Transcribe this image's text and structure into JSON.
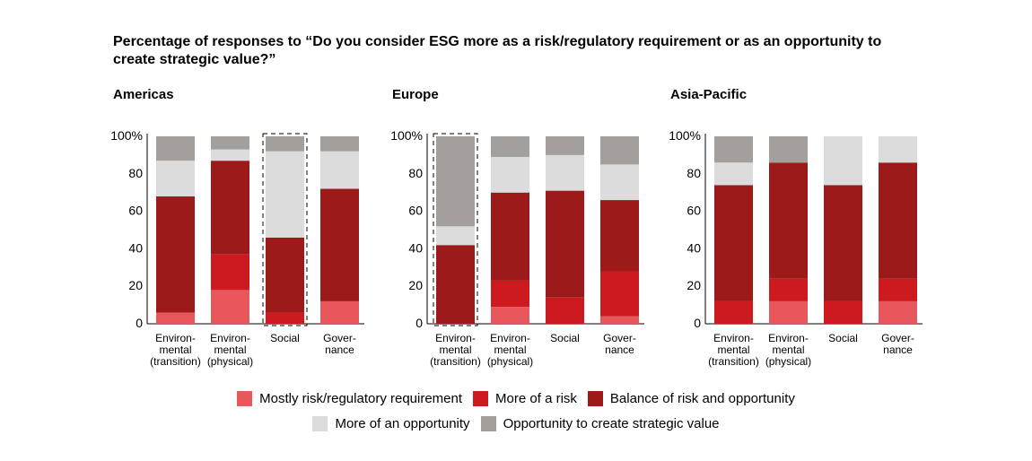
{
  "chart_data": {
    "type": "bar",
    "stacked": true,
    "title": "Percentage of responses to “Do you consider ESG more as a risk/regulatory requirement or as an opportunity to create strategic value?”",
    "y_ticks": [
      "0",
      "20",
      "40",
      "60",
      "80",
      "100%"
    ],
    "ylim": [
      0,
      100
    ],
    "series": [
      {
        "name": "Mostly risk/regulatory requirement",
        "color": "#e8575b"
      },
      {
        "name": "More of a risk",
        "color": "#cc1a1e"
      },
      {
        "name": "Balance of risk and opportunity",
        "color": "#9d1a1a"
      },
      {
        "name": "More of an opportunity",
        "color": "#dcdcdc"
      },
      {
        "name": "Opportunity to create strategic value",
        "color": "#a39f9c"
      }
    ],
    "panels": [
      {
        "name": "Americas",
        "categories": [
          {
            "lines": [
              "Environ-",
              "mental",
              "(transition)"
            ],
            "values": [
              6,
              0,
              62,
              19,
              13
            ],
            "highlighted": false
          },
          {
            "lines": [
              "Environ-",
              "mental",
              "(physical)"
            ],
            "values": [
              18,
              19,
              50,
              6,
              7
            ],
            "highlighted": false
          },
          {
            "lines": [
              "Social"
            ],
            "values": [
              0,
              6,
              40,
              46,
              8
            ],
            "highlighted": true
          },
          {
            "lines": [
              "Gover-",
              "nance"
            ],
            "values": [
              12,
              0,
              60,
              20,
              8
            ],
            "highlighted": false
          }
        ]
      },
      {
        "name": "Europe",
        "categories": [
          {
            "lines": [
              "Environ-",
              "mental",
              "(transition)"
            ],
            "values": [
              0,
              0,
              42,
              10,
              48
            ],
            "highlighted": true
          },
          {
            "lines": [
              "Environ-",
              "mental",
              "(physical)"
            ],
            "values": [
              9,
              14,
              47,
              19,
              11
            ],
            "highlighted": false
          },
          {
            "lines": [
              "Social"
            ],
            "values": [
              0,
              14,
              57,
              19,
              10
            ],
            "highlighted": false
          },
          {
            "lines": [
              "Gover-",
              "nance"
            ],
            "values": [
              4,
              24,
              38,
              19,
              15
            ],
            "highlighted": false
          }
        ]
      },
      {
        "name": "Asia-Pacific",
        "categories": [
          {
            "lines": [
              "Environ-",
              "mental",
              "(transition)"
            ],
            "values": [
              0,
              12,
              62,
              12,
              14
            ],
            "highlighted": false
          },
          {
            "lines": [
              "Environ-",
              "mental",
              "(physical)"
            ],
            "values": [
              12,
              12,
              62,
              0,
              14
            ],
            "highlighted": false
          },
          {
            "lines": [
              "Social"
            ],
            "values": [
              0,
              12,
              62,
              26,
              0
            ],
            "highlighted": false
          },
          {
            "lines": [
              "Gover-",
              "nance"
            ],
            "values": [
              12,
              12,
              62,
              14,
              0
            ],
            "highlighted": false
          }
        ]
      }
    ]
  }
}
